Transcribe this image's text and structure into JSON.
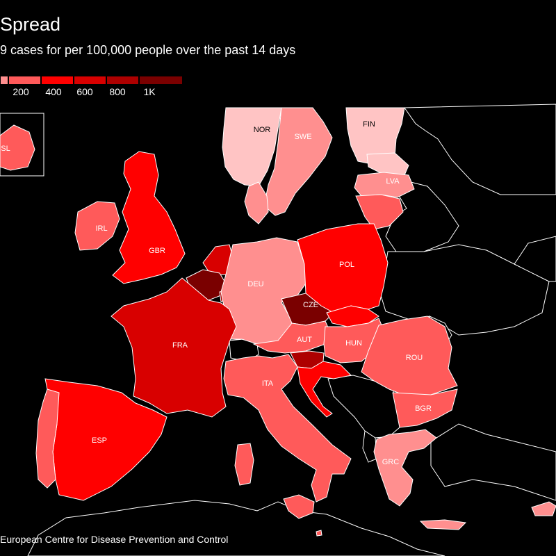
{
  "title": "Spread",
  "subtitle": "9 cases for per 100,000 people over the past 14 days",
  "legend": {
    "ticks": [
      "200",
      "400",
      "600",
      "800",
      "1K"
    ],
    "colors": [
      "#ff8f8f",
      "#ff5a5a",
      "#ff0000",
      "#d80000",
      "#ad0000",
      "#7a0000"
    ]
  },
  "countries": {
    "NOR": {
      "label": "NOR",
      "color": "#ffc4c4"
    },
    "SWE": {
      "label": "SWE",
      "color": "#ff8f8f"
    },
    "FIN": {
      "label": "FIN",
      "color": "#ffc4c4"
    },
    "EST": {
      "label": "",
      "color": "#ffc4c4"
    },
    "LVA": {
      "label": "LVA",
      "color": "#ff8f8f"
    },
    "LTU": {
      "label": "",
      "color": "#ff5a5a"
    },
    "DNK": {
      "label": "",
      "color": "#ff8f8f"
    },
    "ISL": {
      "label": "SL",
      "color": "#ff5a5a"
    },
    "IRL": {
      "label": "IRL",
      "color": "#ff5a5a"
    },
    "GBR": {
      "label": "GBR",
      "color": "#ff0000"
    },
    "NLD": {
      "label": "",
      "color": "#d80000"
    },
    "BEL": {
      "label": "",
      "color": "#7a0000"
    },
    "LUX": {
      "label": "",
      "color": "#ad0000"
    },
    "DEU": {
      "label": "DEU",
      "color": "#ff8f8f"
    },
    "POL": {
      "label": "POL",
      "color": "#ff0000"
    },
    "CZE": {
      "label": "CZE",
      "color": "#7a0000"
    },
    "SVK": {
      "label": "",
      "color": "#ff0000"
    },
    "AUT": {
      "label": "AUT",
      "color": "#ff5a5a"
    },
    "HUN": {
      "label": "HUN",
      "color": "#ff5a5a"
    },
    "SVN": {
      "label": "",
      "color": "#ad0000"
    },
    "HRV": {
      "label": "",
      "color": "#ff0000"
    },
    "ROU": {
      "label": "ROU",
      "color": "#ff5a5a"
    },
    "BGR": {
      "label": "BGR",
      "color": "#ff5a5a"
    },
    "FRA": {
      "label": "FRA",
      "color": "#d80000"
    },
    "ESP": {
      "label": "ESP",
      "color": "#ff0000"
    },
    "PRT": {
      "label": "",
      "color": "#ff5a5a"
    },
    "ITA": {
      "label": "ITA",
      "color": "#ff5a5a"
    },
    "GRC": {
      "label": "GRC",
      "color": "#ff8f8f"
    },
    "CYP": {
      "label": "",
      "color": "#ff8f8f"
    },
    "MLT": {
      "label": "",
      "color": "#ff5a5a"
    }
  },
  "source": "European Centre for Disease Prevention and Control"
}
